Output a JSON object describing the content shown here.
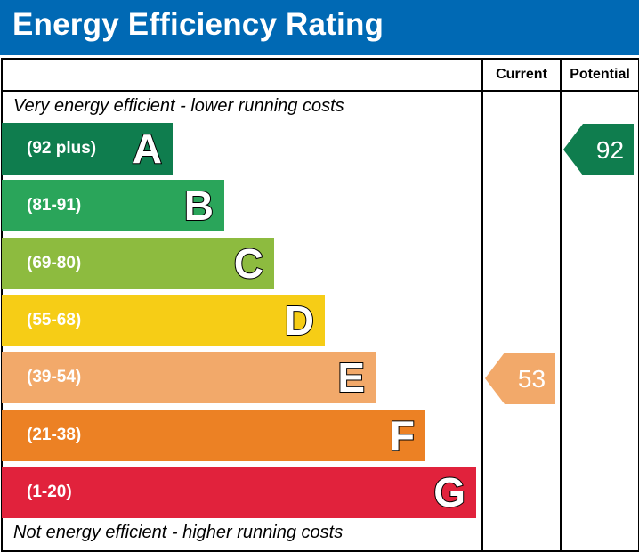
{
  "header": {
    "title": "Energy Efficiency Rating"
  },
  "columns": {
    "current": "Current",
    "potential": "Potential"
  },
  "notes": {
    "top": "Very energy efficient - lower running costs",
    "bottom": "Not energy efficient - higher running costs"
  },
  "colors": {
    "header": "#0069b4",
    "A": "#0f7d4e",
    "B": "#2aa55a",
    "C": "#8dbb3f",
    "D": "#f6cd16",
    "E": "#f2a96a",
    "F": "#ec8124",
    "G": "#e1223c"
  },
  "chart_data": {
    "type": "bar",
    "bands": [
      {
        "letter": "A",
        "range": "(92 plus)",
        "color": "#0f7d4e"
      },
      {
        "letter": "B",
        "range": "(81-91)",
        "color": "#2aa55a"
      },
      {
        "letter": "C",
        "range": "(69-80)",
        "color": "#8dbb3f"
      },
      {
        "letter": "D",
        "range": "(55-68)",
        "color": "#f6cd16"
      },
      {
        "letter": "E",
        "range": "(39-54)",
        "color": "#f2a96a"
      },
      {
        "letter": "F",
        "range": "(21-38)",
        "color": "#ec8124"
      },
      {
        "letter": "G",
        "range": "(1-20)",
        "color": "#e1223c"
      }
    ],
    "current": {
      "value": 53,
      "band": "E",
      "color": "#f2a96a"
    },
    "potential": {
      "value": 92,
      "band": "A",
      "color": "#0f7d4e"
    }
  }
}
